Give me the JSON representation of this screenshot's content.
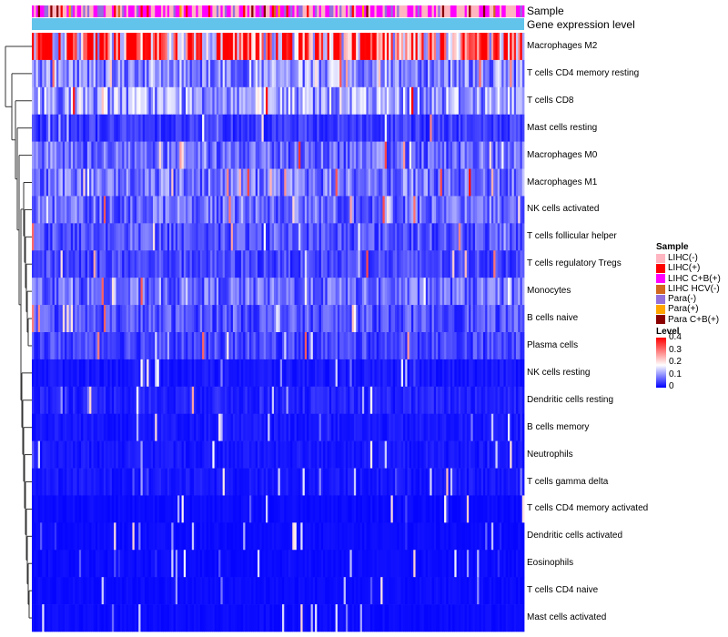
{
  "chart_data": {
    "type": "heatmap",
    "title": "",
    "annotation_tracks": [
      "Sample",
      "Gene expression level"
    ],
    "rows": [
      "Macrophages M2",
      "T cells CD4 memory resting",
      "T cells CD8",
      "Mast cells resting",
      "Macrophages M0",
      "Macrophages M1",
      "NK cells activated",
      "T cells follicular helper",
      "T cells regulatory  Tregs",
      "Monocytes",
      "B cells naive",
      "Plasma cells",
      "NK cells resting",
      "Dendritic cells resting",
      "B cells memory",
      "Neutrophils",
      "T cells gamma delta",
      "T cells CD4 memory activated",
      "Dendritic cells activated",
      "Eosinophils",
      "T cells CD4 naive",
      "Mast cells activated"
    ],
    "row_mean_level": [
      0.32,
      0.12,
      0.14,
      0.05,
      0.09,
      0.1,
      0.09,
      0.07,
      0.06,
      0.09,
      0.07,
      0.06,
      0.02,
      0.03,
      0.02,
      0.02,
      0.02,
      0.01,
      0.01,
      0.01,
      0.01,
      0.01
    ],
    "sample_legend": {
      "title": "Sample",
      "items": [
        {
          "label": "LIHC(-)",
          "color": "#ffb6c1"
        },
        {
          "label": "LIHC(+)",
          "color": "#ff0000"
        },
        {
          "label": "LIHC C+B(+)",
          "color": "#ff00ff"
        },
        {
          "label": "LIHC HCV(-)",
          "color": "#d2691e"
        },
        {
          "label": "Para(-)",
          "color": "#9370db"
        },
        {
          "label": "Para(+)",
          "color": "#ffa500"
        },
        {
          "label": "Para C+B(+)",
          "color": "#8b0000"
        }
      ]
    },
    "level_legend": {
      "title": "Level",
      "ticks": [
        "0.4",
        "0.3",
        "0.2",
        "0.1",
        "0"
      ],
      "range": [
        0,
        0.4
      ],
      "colors": {
        "low": "#0000ff",
        "mid": "#ffffff",
        "high": "#ff0000"
      }
    },
    "expression_track_color": "#62c4ea",
    "legend_position": "right"
  }
}
